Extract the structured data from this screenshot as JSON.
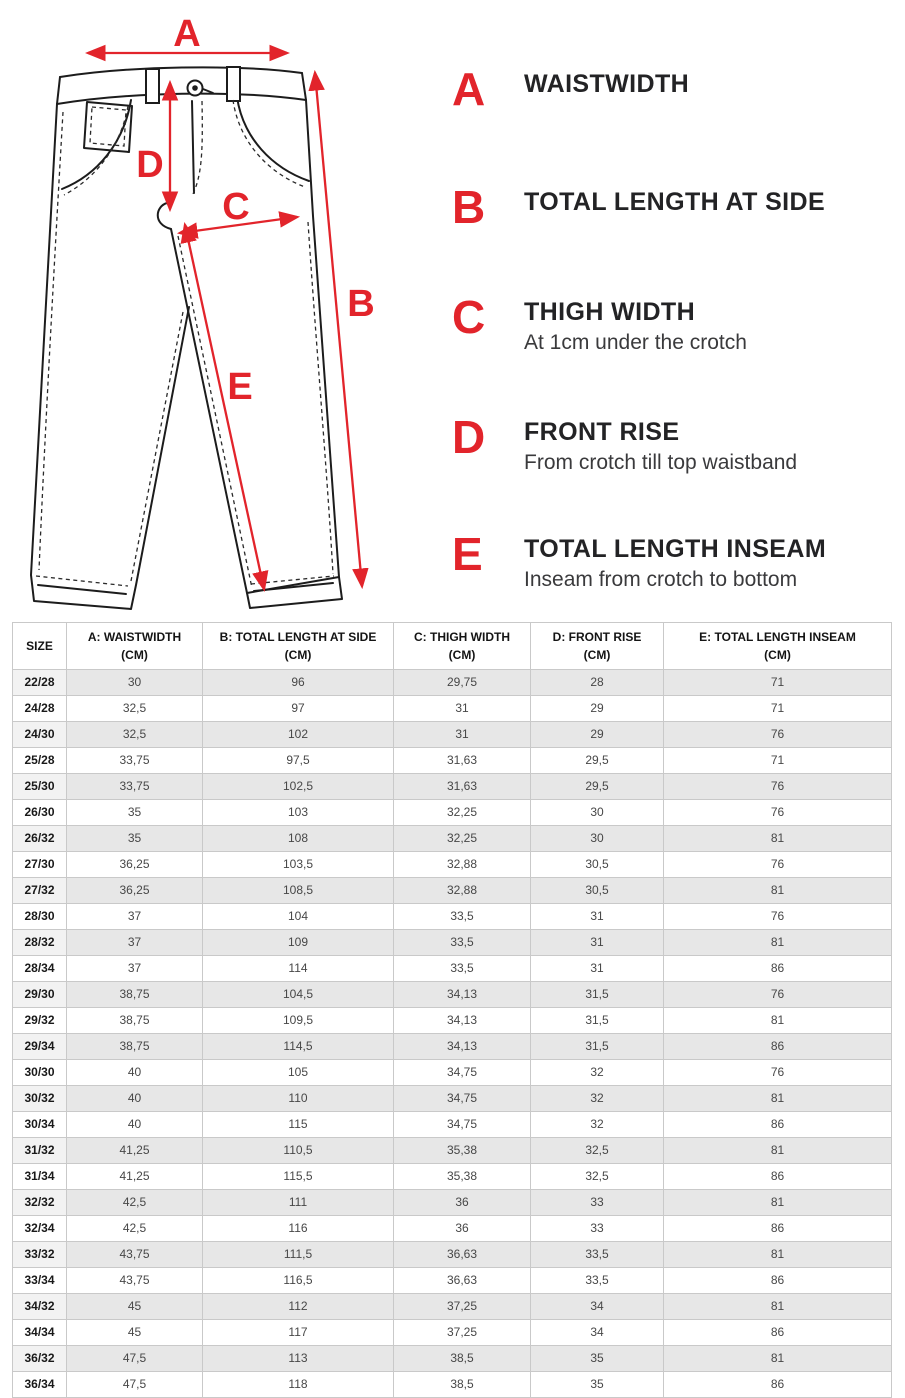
{
  "accent_color": "#e2242b",
  "diagram": {
    "markers": [
      "A",
      "B",
      "C",
      "D",
      "E"
    ]
  },
  "legend": {
    "items": [
      {
        "letter": "A",
        "title": "WAISTWIDTH",
        "subtitle": ""
      },
      {
        "letter": "B",
        "title": "TOTAL LENGTH AT SIDE",
        "subtitle": ""
      },
      {
        "letter": "C",
        "title": "THIGH WIDTH",
        "subtitle": "At 1cm under the crotch"
      },
      {
        "letter": "D",
        "title": "FRONT RISE",
        "subtitle": "From crotch till top waistband"
      },
      {
        "letter": "E",
        "title": "TOTAL LENGTH INSEAM",
        "subtitle": "Inseam from crotch to bottom"
      }
    ]
  },
  "table": {
    "headers": [
      {
        "label": "SIZE",
        "unit": ""
      },
      {
        "label": "A: WAISTWIDTH",
        "unit": "(CM)"
      },
      {
        "label": "B: TOTAL LENGTH AT SIDE",
        "unit": "(CM)"
      },
      {
        "label": "C: THIGH WIDTH",
        "unit": "(CM)"
      },
      {
        "label": "D: FRONT RISE",
        "unit": "(CM)"
      },
      {
        "label": "E: TOTAL LENGTH INSEAM",
        "unit": "(CM)"
      }
    ],
    "rows": [
      [
        "22/28",
        "30",
        "96",
        "29,75",
        "28",
        "71"
      ],
      [
        "24/28",
        "32,5",
        "97",
        "31",
        "29",
        "71"
      ],
      [
        "24/30",
        "32,5",
        "102",
        "31",
        "29",
        "76"
      ],
      [
        "25/28",
        "33,75",
        "97,5",
        "31,63",
        "29,5",
        "71"
      ],
      [
        "25/30",
        "33,75",
        "102,5",
        "31,63",
        "29,5",
        "76"
      ],
      [
        "26/30",
        "35",
        "103",
        "32,25",
        "30",
        "76"
      ],
      [
        "26/32",
        "35",
        "108",
        "32,25",
        "30",
        "81"
      ],
      [
        "27/30",
        "36,25",
        "103,5",
        "32,88",
        "30,5",
        "76"
      ],
      [
        "27/32",
        "36,25",
        "108,5",
        "32,88",
        "30,5",
        "81"
      ],
      [
        "28/30",
        "37",
        "104",
        "33,5",
        "31",
        "76"
      ],
      [
        "28/32",
        "37",
        "109",
        "33,5",
        "31",
        "81"
      ],
      [
        "28/34",
        "37",
        "114",
        "33,5",
        "31",
        "86"
      ],
      [
        "29/30",
        "38,75",
        "104,5",
        "34,13",
        "31,5",
        "76"
      ],
      [
        "29/32",
        "38,75",
        "109,5",
        "34,13",
        "31,5",
        "81"
      ],
      [
        "29/34",
        "38,75",
        "114,5",
        "34,13",
        "31,5",
        "86"
      ],
      [
        "30/30",
        "40",
        "105",
        "34,75",
        "32",
        "76"
      ],
      [
        "30/32",
        "40",
        "110",
        "34,75",
        "32",
        "81"
      ],
      [
        "30/34",
        "40",
        "115",
        "34,75",
        "32",
        "86"
      ],
      [
        "31/32",
        "41,25",
        "110,5",
        "35,38",
        "32,5",
        "81"
      ],
      [
        "31/34",
        "41,25",
        "115,5",
        "35,38",
        "32,5",
        "86"
      ],
      [
        "32/32",
        "42,5",
        "111",
        "36",
        "33",
        "81"
      ],
      [
        "32/34",
        "42,5",
        "116",
        "36",
        "33",
        "86"
      ],
      [
        "33/32",
        "43,75",
        "111,5",
        "36,63",
        "33,5",
        "81"
      ],
      [
        "33/34",
        "43,75",
        "116,5",
        "36,63",
        "33,5",
        "86"
      ],
      [
        "34/32",
        "45",
        "112",
        "37,25",
        "34",
        "81"
      ],
      [
        "34/34",
        "45",
        "117",
        "37,25",
        "34",
        "86"
      ],
      [
        "36/32",
        "47,5",
        "113",
        "38,5",
        "35",
        "81"
      ],
      [
        "36/34",
        "47,5",
        "118",
        "38,5",
        "35",
        "86"
      ]
    ]
  },
  "chart_data": {
    "type": "table",
    "title": "Jeans size measurement chart",
    "columns": [
      "SIZE",
      "A: WAISTWIDTH (CM)",
      "B: TOTAL LENGTH AT SIDE (CM)",
      "C: THIGH WIDTH (CM)",
      "D: FRONT RISE (CM)",
      "E: TOTAL LENGTH INSEAM (CM)"
    ],
    "rows": [
      [
        "22/28",
        30,
        96,
        29.75,
        28,
        71
      ],
      [
        "24/28",
        32.5,
        97,
        31,
        29,
        71
      ],
      [
        "24/30",
        32.5,
        102,
        31,
        29,
        76
      ],
      [
        "25/28",
        33.75,
        97.5,
        31.63,
        29.5,
        71
      ],
      [
        "25/30",
        33.75,
        102.5,
        31.63,
        29.5,
        76
      ],
      [
        "26/30",
        35,
        103,
        32.25,
        30,
        76
      ],
      [
        "26/32",
        35,
        108,
        32.25,
        30,
        81
      ],
      [
        "27/30",
        36.25,
        103.5,
        32.88,
        30.5,
        76
      ],
      [
        "27/32",
        36.25,
        108.5,
        32.88,
        30.5,
        81
      ],
      [
        "28/30",
        37,
        104,
        33.5,
        31,
        76
      ],
      [
        "28/32",
        37,
        109,
        33.5,
        31,
        81
      ],
      [
        "28/34",
        37,
        114,
        33.5,
        31,
        86
      ],
      [
        "29/30",
        38.75,
        104.5,
        34.13,
        31.5,
        76
      ],
      [
        "29/32",
        38.75,
        109.5,
        34.13,
        31.5,
        81
      ],
      [
        "29/34",
        38.75,
        114.5,
        34.13,
        31.5,
        86
      ],
      [
        "30/30",
        40,
        105,
        34.75,
        32,
        76
      ],
      [
        "30/32",
        40,
        110,
        34.75,
        32,
        81
      ],
      [
        "30/34",
        40,
        115,
        34.75,
        32,
        86
      ],
      [
        "31/32",
        41.25,
        110.5,
        35.38,
        32.5,
        81
      ],
      [
        "31/34",
        41.25,
        115.5,
        35.38,
        32.5,
        86
      ],
      [
        "32/32",
        42.5,
        111,
        36,
        33,
        81
      ],
      [
        "32/34",
        42.5,
        116,
        36,
        33,
        86
      ],
      [
        "33/32",
        43.75,
        111.5,
        36.63,
        33.5,
        81
      ],
      [
        "33/34",
        43.75,
        116.5,
        36.63,
        33.5,
        86
      ],
      [
        "34/32",
        45,
        112,
        37.25,
        34,
        81
      ],
      [
        "34/34",
        45,
        117,
        37.25,
        34,
        86
      ],
      [
        "36/32",
        47.5,
        113,
        38.5,
        35,
        81
      ],
      [
        "36/34",
        47.5,
        118,
        38.5,
        35,
        86
      ]
    ]
  }
}
